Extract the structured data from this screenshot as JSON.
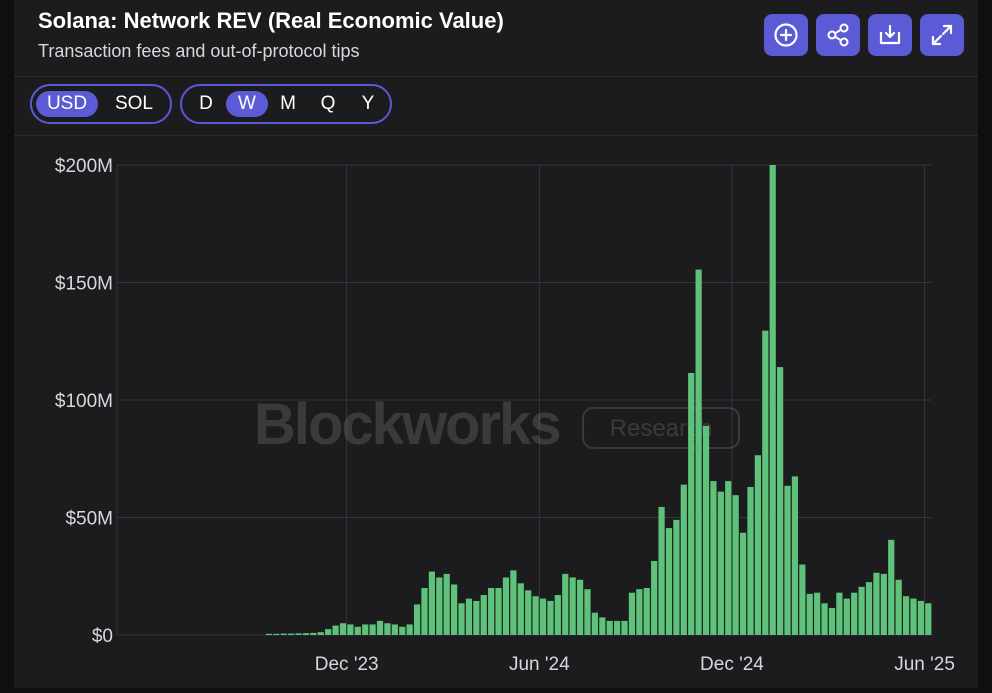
{
  "header": {
    "title": "Solana: Network REV (Real Economic Value)",
    "subtitle": "Transaction fees and out-of-protocol tips",
    "actions": [
      {
        "name": "add",
        "icon": "plus-circle-icon"
      },
      {
        "name": "share",
        "icon": "share-icon"
      },
      {
        "name": "download",
        "icon": "download-icon"
      },
      {
        "name": "expand",
        "icon": "expand-icon"
      }
    ]
  },
  "toolbar": {
    "currency": {
      "options": [
        "USD",
        "SOL"
      ],
      "selected": "USD"
    },
    "interval": {
      "options": [
        "D",
        "W",
        "M",
        "Q",
        "Y"
      ],
      "selected": "W"
    }
  },
  "watermark": {
    "brand": "Blockworks",
    "badge": "Research"
  },
  "colors": {
    "bar": "#5ec27a",
    "accent": "#5b5bd6",
    "grid": "#34343a"
  },
  "chart_data": {
    "type": "bar",
    "y_tick_labels": [
      "$0",
      "$50M",
      "$100M",
      "$150M",
      "$200M"
    ],
    "y_ticks": [
      0,
      50,
      100,
      150,
      200
    ],
    "ylim": [
      0,
      200
    ],
    "y_unit": "millions USD",
    "x_tick_labels": [
      "Dec '23",
      "Jun '24",
      "Dec '24",
      "Jun '25"
    ],
    "x_tick_positions": [
      31,
      57,
      83,
      109
    ],
    "grid": true,
    "values": [
      0,
      0,
      0,
      0,
      0,
      0,
      0,
      0,
      0,
      0,
      0,
      0,
      0,
      0,
      0,
      0,
      0,
      0,
      0,
      0,
      0.5,
      0.5,
      0.6,
      0.6,
      0.7,
      0.8,
      0.9,
      1.2,
      2.5,
      4,
      5,
      4.5,
      3.5,
      4.5,
      4.5,
      6,
      5,
      4.5,
      3.5,
      4.5,
      13,
      20,
      27,
      24.5,
      26,
      21.5,
      13.5,
      15.5,
      14.5,
      17,
      20,
      20,
      24.5,
      27.5,
      22,
      19,
      16.5,
      15.5,
      14.5,
      17,
      26,
      24.5,
      23.5,
      19.5,
      9.5,
      7.5,
      6,
      6,
      6,
      18,
      19.5,
      20,
      31.5,
      54.5,
      45.5,
      49,
      64,
      111.5,
      155.5,
      89,
      65.5,
      61,
      65.5,
      59.5,
      43.5,
      63,
      76.5,
      129.5,
      200,
      114,
      63.5,
      67.5,
      30,
      17.5,
      18,
      13.5,
      11.5,
      18,
      15.5,
      18,
      20.5,
      22.5,
      26.5,
      26,
      40.5,
      23.5,
      16.5,
      15.5,
      14.5,
      13.5
    ]
  }
}
